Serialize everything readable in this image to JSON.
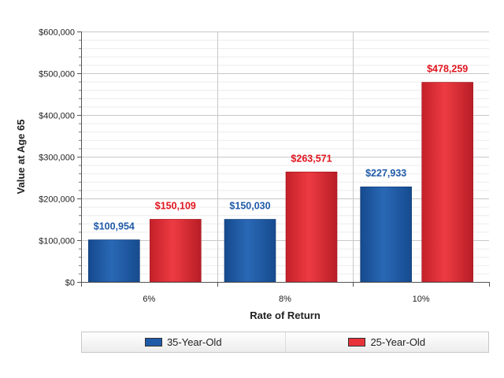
{
  "chart_data": {
    "type": "bar",
    "xlabel": "Rate of Return",
    "ylabel": "Value at Age 65",
    "categories": [
      "6%",
      "8%",
      "10%"
    ],
    "ylim": [
      0,
      600000
    ],
    "yticks": [
      "$0",
      "$100,000",
      "$200,000",
      "$300,000",
      "$400,000",
      "$500,000",
      "$600,000"
    ],
    "series": [
      {
        "name": "35-Year-Old",
        "color": "#1f5aa8",
        "label_color": "#1f5aa8",
        "values": [
          100954,
          150030,
          227933
        ],
        "labels": [
          "$100,954",
          "$150,030",
          "$227,933"
        ]
      },
      {
        "name": "25-Year-Old",
        "color": "#e8333a",
        "label_color": "#e0141e",
        "values": [
          150109,
          263571,
          478259
        ],
        "labels": [
          "$150,109",
          "$263,571",
          "$478,259"
        ]
      }
    ],
    "grid": true,
    "legend_position": "bottom"
  }
}
